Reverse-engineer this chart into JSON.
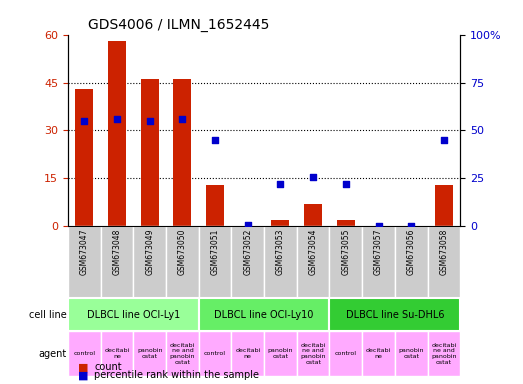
{
  "title": "GDS4006 / ILMN_1652445",
  "samples": [
    "GSM673047",
    "GSM673048",
    "GSM673049",
    "GSM673050",
    "GSM673051",
    "GSM673052",
    "GSM673053",
    "GSM673054",
    "GSM673055",
    "GSM673057",
    "GSM673056",
    "GSM673058"
  ],
  "counts": [
    43,
    58,
    46,
    46,
    13,
    0,
    2,
    7,
    2,
    0,
    0,
    13
  ],
  "percentiles": [
    55,
    56,
    55,
    56,
    45,
    1,
    22,
    26,
    22,
    0,
    0,
    45
  ],
  "ylim_left": [
    0,
    60
  ],
  "ylim_right": [
    0,
    100
  ],
  "yticks_left": [
    0,
    15,
    30,
    45,
    60
  ],
  "yticks_right": [
    0,
    25,
    50,
    75,
    100
  ],
  "ytick_labels_right": [
    "0",
    "25",
    "50",
    "75",
    "100%"
  ],
  "bar_color": "#cc2200",
  "dot_color": "#0000cc",
  "grid_color": "#000000",
  "cell_line_groups": [
    {
      "label": "DLBCL line OCI-Ly1",
      "start": 0,
      "end": 4,
      "color": "#99ff99"
    },
    {
      "label": "DLBCL line OCI-Ly10",
      "start": 4,
      "end": 8,
      "color": "#66ee66"
    },
    {
      "label": "DLBCL line Su-DHL6",
      "start": 8,
      "end": 12,
      "color": "#33cc33"
    }
  ],
  "agent_labels": [
    "control",
    "decitabi\nne",
    "panobin\nostat",
    "decitabi\nne and\npanobin\nostat",
    "control",
    "decitabi\nne",
    "panobin\nostat",
    "decitabi\nne and\npanobin\nostat",
    "control",
    "decitabi\nne",
    "panobin\nostat",
    "decitabi\nne and\npanobin\nostat"
  ],
  "agent_color": "#ffaaff",
  "gsm_bg_color": "#cccccc",
  "legend_count_color": "#cc2200",
  "legend_dot_color": "#0000cc"
}
